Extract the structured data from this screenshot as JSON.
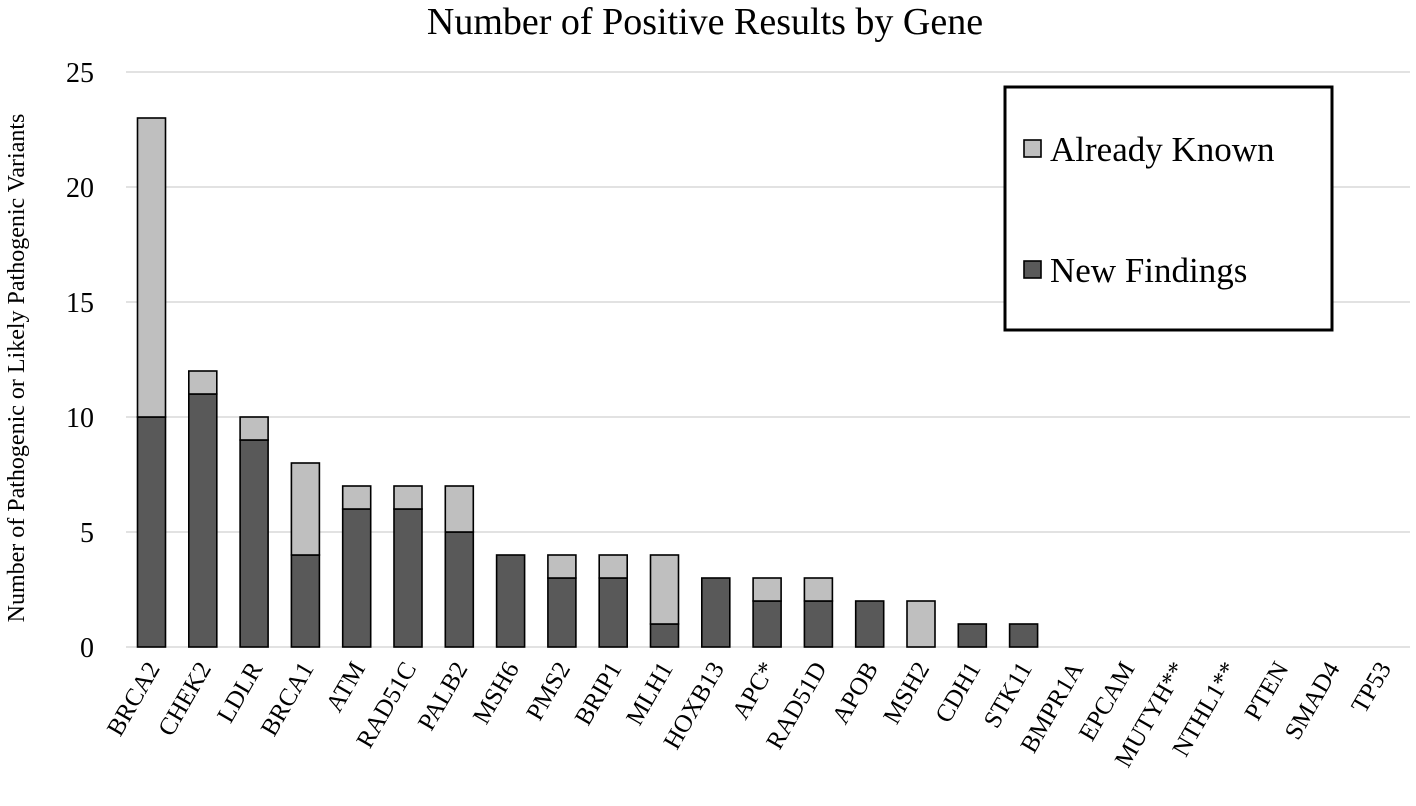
{
  "chart_data": {
    "type": "bar",
    "stacked": true,
    "title": "Number of Positive Results by Gene",
    "xlabel": "",
    "ylabel": "Number of Pathogenic or Likely Pathogenic Variants",
    "ylim": [
      0,
      25
    ],
    "yticks": [
      0,
      5,
      10,
      15,
      20,
      25
    ],
    "grid": true,
    "legend_position": "top-right",
    "categories": [
      "BRCA2",
      "CHEK2",
      "LDLR",
      "BRCA1",
      "ATM",
      "RAD51C",
      "PALB2",
      "MSH6",
      "PMS2",
      "BRIP1",
      "MLH1",
      "HOXB13",
      "APC*",
      "RAD51D",
      "APOB",
      "MSH2",
      "CDH1",
      "STK11",
      "BMPR1A",
      "EPCAM",
      "MUTYH**",
      "NTHL1**",
      "PTEN",
      "SMAD4",
      "TP53"
    ],
    "series": [
      {
        "name": "New Findings",
        "color": "#595959",
        "values": [
          10,
          11,
          9,
          4,
          6,
          6,
          5,
          4,
          3,
          3,
          1,
          3,
          2,
          2,
          2,
          0,
          1,
          1,
          0,
          0,
          0,
          0,
          0,
          0,
          0
        ]
      },
      {
        "name": "Already Known",
        "color": "#bfbfbf",
        "values": [
          13,
          1,
          1,
          4,
          1,
          1,
          2,
          0,
          1,
          1,
          3,
          0,
          1,
          1,
          0,
          2,
          0,
          0,
          0,
          0,
          0,
          0,
          0,
          0,
          0
        ]
      }
    ],
    "legend_order": [
      "Already Known",
      "New Findings"
    ]
  }
}
